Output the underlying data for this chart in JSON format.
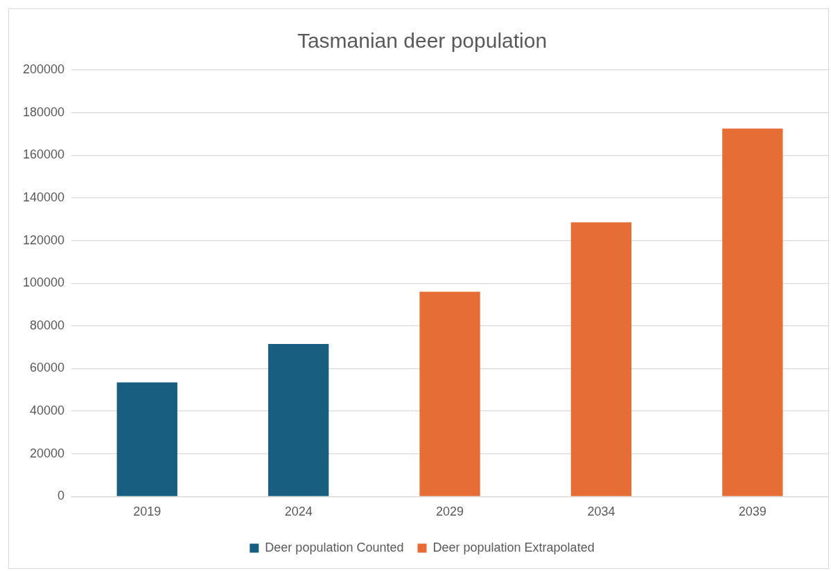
{
  "chart_data": {
    "type": "bar",
    "title": "Tasmanian deer population",
    "categories": [
      "2019",
      "2024",
      "2029",
      "2034",
      "2039"
    ],
    "series": [
      {
        "name": "Deer population Counted",
        "color": "#175e81",
        "values": [
          53500,
          71500,
          null,
          null,
          null
        ]
      },
      {
        "name": "Deer population Extrapolated",
        "color": "#e66d35",
        "values": [
          null,
          null,
          96000,
          128500,
          172500
        ]
      }
    ],
    "ylim": [
      0,
      200000
    ],
    "yticks": [
      0,
      20000,
      40000,
      60000,
      80000,
      100000,
      120000,
      140000,
      160000,
      180000,
      200000
    ],
    "grid": "y",
    "legend": "bottom"
  }
}
